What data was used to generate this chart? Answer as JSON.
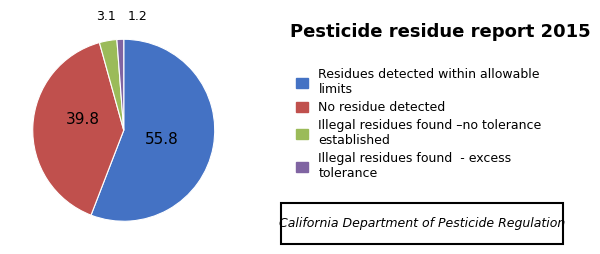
{
  "title": "Pesticide residue report 2015",
  "values": [
    55.8,
    39.8,
    3.1,
    1.2
  ],
  "colors": [
    "#4472C4",
    "#C0504D",
    "#9BBB59",
    "#8064A2"
  ],
  "pie_labels": [
    "55.8",
    "39.8",
    "3.1",
    "1.2"
  ],
  "legend_labels": [
    "Residues detected within allowable\nlimits",
    "No residue detected",
    "Illegal residues found –no tolerance\nestablished",
    "Illegal residues found  - excess\ntolerance"
  ],
  "footer_text": "California Department of Pesticide Regulation",
  "startangle": 90,
  "background_color": "#FFFFFF",
  "title_fontsize": 13,
  "label_fontsize": 10,
  "legend_fontsize": 9,
  "border_color": "#000000"
}
